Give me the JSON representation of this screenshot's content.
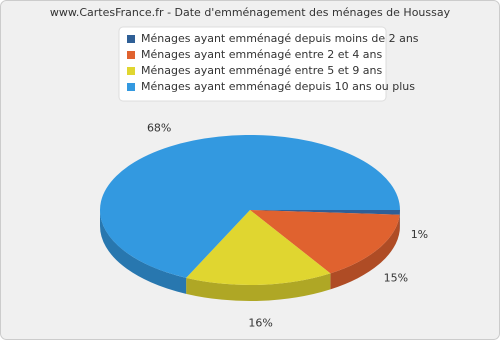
{
  "chart_data": {
    "type": "pie",
    "title": "www.CartesFrance.fr - Date d'emménagement des ménages de Houssay",
    "categories": [
      "Ménages ayant emménagé depuis moins de 2 ans",
      "Ménages ayant emménagé entre 2 et 4 ans",
      "Ménages ayant emménagé entre 5 et 9 ans",
      "Ménages ayant emménagé depuis 10 ans ou plus"
    ],
    "values": [
      1,
      15,
      16,
      68
    ],
    "value_labels": [
      "1%",
      "15%",
      "16%",
      "68%"
    ],
    "colors": [
      "#2f5f96",
      "#e0622f",
      "#e0d630",
      "#3399e0"
    ]
  }
}
